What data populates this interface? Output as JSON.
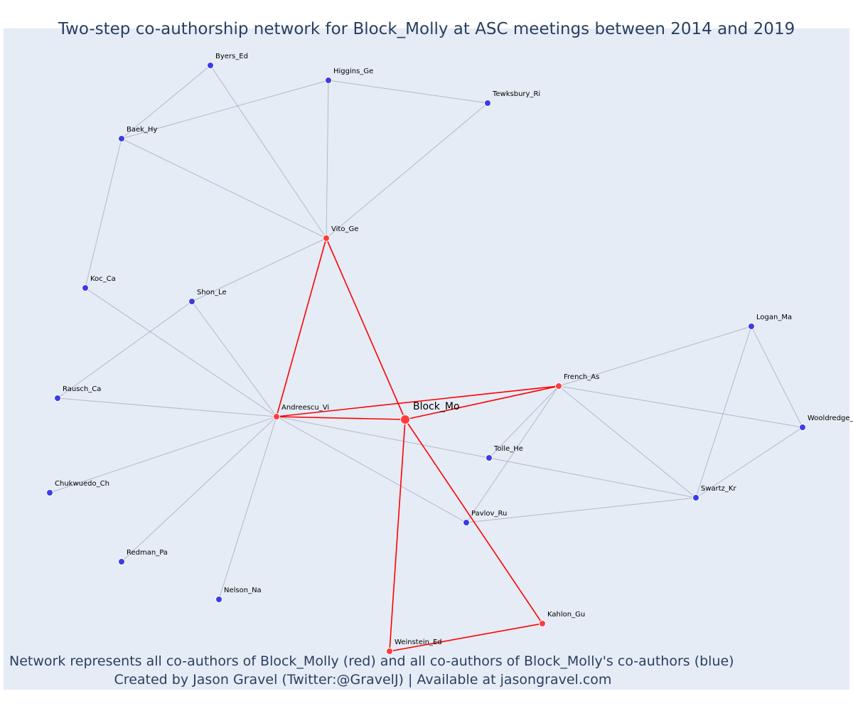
{
  "title": "Two-step co-authorship network for Block_Molly at ASC meetings between 2014 and 2019",
  "footnote": {
    "line1": "Network represents all co-authors of Block_Molly (red) and all co-authors of Block_Molly's co-authors (blue)",
    "line2": "Created by Jason Gravel (Twitter:@GravelJ) | Available at jasongravel.com"
  },
  "colors": {
    "background": "#e5ecf6",
    "text": "#2a3f5f",
    "first_step_edge": "#ff0000",
    "second_step_edge": "#b4b8c6",
    "coauthor_node": "#ff3b3b",
    "second_step_node": "#3c3ce8"
  },
  "nodes": [
    {
      "id": "Block_Mo",
      "label": "Block_Mo",
      "group": "center"
    },
    {
      "id": "Vito_Ge",
      "label": "Vito_Ge",
      "group": "coauthor"
    },
    {
      "id": "Andreescu_Vi",
      "label": "Andreescu_Vi",
      "group": "coauthor"
    },
    {
      "id": "French_As",
      "label": "French_As",
      "group": "coauthor"
    },
    {
      "id": "Kahlon_Gu",
      "label": "Kahlon_Gu",
      "group": "coauthor"
    },
    {
      "id": "Weinstein_Ed",
      "label": "Weinstein_Ed",
      "group": "coauthor"
    },
    {
      "id": "Byers_Ed",
      "label": "Byers_Ed",
      "group": "second"
    },
    {
      "id": "Higgins_Ge",
      "label": "Higgins_Ge",
      "group": "second"
    },
    {
      "id": "Tewksbury_Ri",
      "label": "Tewksbury_Ri",
      "group": "second"
    },
    {
      "id": "Baek_Hy",
      "label": "Baek_Hy",
      "group": "second"
    },
    {
      "id": "Koc_Ca",
      "label": "Koc_Ca",
      "group": "second"
    },
    {
      "id": "Shon_Le",
      "label": "Shon_Le",
      "group": "second"
    },
    {
      "id": "Rausch_Ca",
      "label": "Rausch_Ca",
      "group": "second"
    },
    {
      "id": "Chukwuedo_Ch",
      "label": "Chukwuedo_Ch",
      "group": "second"
    },
    {
      "id": "Redman_Pa",
      "label": "Redman_Pa",
      "group": "second"
    },
    {
      "id": "Nelson_Na",
      "label": "Nelson_Na",
      "group": "second"
    },
    {
      "id": "Logan_Ma",
      "label": "Logan_Ma",
      "group": "second"
    },
    {
      "id": "Wooldredge_",
      "label": "Wooldredge_",
      "group": "second"
    },
    {
      "id": "Tolle_He",
      "label": "Tolle_He",
      "group": "second"
    },
    {
      "id": "Swartz_Kr",
      "label": "Swartz_Kr",
      "group": "second"
    },
    {
      "id": "Pavlov_Ru",
      "label": "Pavlov_Ru",
      "group": "second"
    }
  ],
  "edges": [
    [
      "Block_Mo",
      "Vito_Ge"
    ],
    [
      "Block_Mo",
      "Andreescu_Vi"
    ],
    [
      "Block_Mo",
      "French_As"
    ],
    [
      "Block_Mo",
      "Kahlon_Gu"
    ],
    [
      "Block_Mo",
      "Weinstein_Ed"
    ],
    [
      "Vito_Ge",
      "Andreescu_Vi"
    ],
    [
      "Andreescu_Vi",
      "French_As"
    ],
    [
      "Kahlon_Gu",
      "Weinstein_Ed"
    ],
    [
      "Byers_Ed",
      "Baek_Hy"
    ],
    [
      "Byers_Ed",
      "Vito_Ge"
    ],
    [
      "Higgins_Ge",
      "Baek_Hy"
    ],
    [
      "Higgins_Ge",
      "Tewksbury_Ri"
    ],
    [
      "Higgins_Ge",
      "Vito_Ge"
    ],
    [
      "Tewksbury_Ri",
      "Vito_Ge"
    ],
    [
      "Baek_Hy",
      "Vito_Ge"
    ],
    [
      "Baek_Hy",
      "Koc_Ca"
    ],
    [
      "Vito_Ge",
      "Shon_Le"
    ],
    [
      "Koc_Ca",
      "Andreescu_Vi"
    ],
    [
      "Shon_Le",
      "Andreescu_Vi"
    ],
    [
      "Shon_Le",
      "Rausch_Ca"
    ],
    [
      "Rausch_Ca",
      "Andreescu_Vi"
    ],
    [
      "Andreescu_Vi",
      "Chukwuedo_Ch"
    ],
    [
      "Andreescu_Vi",
      "Redman_Pa"
    ],
    [
      "Andreescu_Vi",
      "Nelson_Na"
    ],
    [
      "Andreescu_Vi",
      "Tolle_He"
    ],
    [
      "Andreescu_Vi",
      "Pavlov_Ru"
    ],
    [
      "French_As",
      "Logan_Ma"
    ],
    [
      "French_As",
      "Wooldredge_"
    ],
    [
      "French_As",
      "Tolle_He"
    ],
    [
      "French_As",
      "Pavlov_Ru"
    ],
    [
      "French_As",
      "Swartz_Kr"
    ],
    [
      "Logan_Ma",
      "Wooldredge_"
    ],
    [
      "Logan_Ma",
      "Swartz_Kr"
    ],
    [
      "Wooldredge_",
      "Swartz_Kr"
    ],
    [
      "Tolle_He",
      "Swartz_Kr"
    ],
    [
      "Pavlov_Ru",
      "Swartz_Kr"
    ]
  ]
}
